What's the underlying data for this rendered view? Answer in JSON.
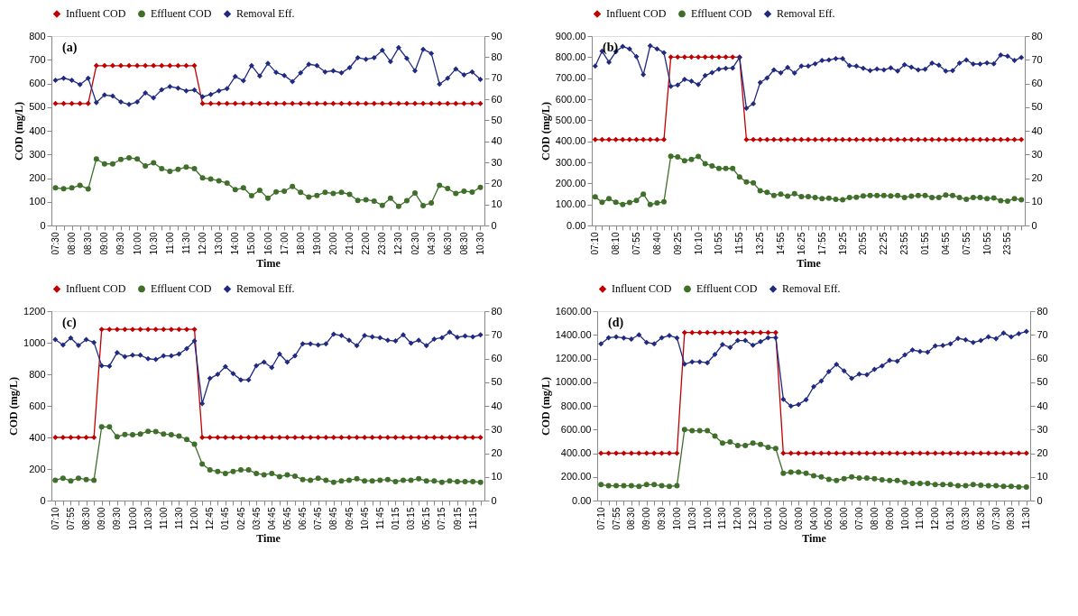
{
  "chart_data": [
    {
      "type": "line",
      "xlabel": "Time",
      "ylabel": "COD (mg/L)",
      "annotations": [
        "(a)"
      ],
      "legend": "top",
      "grid": false,
      "categories": [
        "07:30",
        null,
        "08:00",
        null,
        "08:30",
        null,
        "09:00",
        null,
        "09:30",
        null,
        "10:00",
        null,
        "10:30",
        null,
        "11:00",
        null,
        "11:30",
        null,
        "12:00",
        null,
        "13:00",
        null,
        "14:00",
        null,
        "15:00",
        null,
        "16:00",
        null,
        "17:00",
        null,
        "18:00",
        null,
        "19:00",
        null,
        "20:00",
        null,
        "21:00",
        null,
        "22:00",
        null,
        "23:00",
        null,
        "12:30",
        null,
        "02:30",
        null,
        "04:30",
        null,
        "06:30",
        null,
        "08:30",
        null,
        "10:30"
      ],
      "ylim": [
        0,
        800
      ],
      "yticks": [
        0,
        100,
        200,
        300,
        400,
        500,
        600,
        700,
        800
      ],
      "y2lim": [
        0,
        90
      ],
      "y2ticks": [
        0,
        10,
        20,
        30,
        40,
        50,
        60,
        70,
        80,
        90
      ],
      "series": [
        {
          "name": "Influent COD",
          "color": "#c00000",
          "marker": "diamond",
          "values": [
            515,
            515,
            515,
            515,
            515,
            675,
            675,
            675,
            675,
            675,
            675,
            675,
            675,
            675,
            675,
            675,
            675,
            675,
            515,
            515,
            515,
            515,
            515,
            515,
            515,
            515,
            515,
            515,
            515,
            515,
            515,
            515,
            515,
            515,
            515,
            515,
            515,
            515,
            515,
            515,
            515,
            515,
            515,
            515,
            515,
            515,
            515,
            515,
            515,
            515,
            515,
            515,
            515
          ]
        },
        {
          "name": "Effluent COD",
          "color": "#3f6f2a",
          "marker": "circle",
          "values": [
            159,
            155,
            159,
            170,
            154,
            281,
            260,
            260,
            279,
            286,
            281,
            251,
            265,
            240,
            229,
            237,
            247,
            240,
            201,
            196,
            189,
            179,
            151,
            159,
            126,
            149,
            115,
            142,
            145,
            165,
            140,
            120,
            127,
            140,
            135,
            140,
            131,
            106,
            109,
            103,
            85,
            115,
            81,
            105,
            137,
            84,
            95,
            170,
            156,
            135,
            145,
            141,
            161
          ]
        },
        {
          "name": "Removal Eff.",
          "color": "#1f2a80",
          "marker": "diamond",
          "axis": "y2",
          "values": [
            69,
            70,
            69,
            67,
            70,
            58.4,
            62,
            61.5,
            58.7,
            57.5,
            58.7,
            63,
            60.6,
            64.5,
            66,
            65.3,
            64,
            64.4,
            61.2,
            62.2,
            64,
            65,
            70.8,
            68.8,
            76,
            71,
            77,
            72.7,
            71.3,
            68.4,
            72.5,
            76.6,
            76,
            73,
            73.5,
            72.5,
            75,
            79.7,
            79,
            79.7,
            83.2,
            77.9,
            84.5,
            79.4,
            73.5,
            83.7,
            81.8,
            67.2,
            70,
            74.4,
            71.6,
            73,
            69.4
          ]
        }
      ]
    },
    {
      "type": "line",
      "xlabel": "Time",
      "ylabel": "COD (mg/L)",
      "annotations": [
        "(b)"
      ],
      "legend": "top",
      "grid": false,
      "categories": [
        "07:10",
        null,
        null,
        "08:10",
        null,
        null,
        "07:55",
        null,
        null,
        "08:40",
        null,
        null,
        "09:25",
        null,
        null,
        "10:10",
        null,
        null,
        "10:55",
        null,
        null,
        "11:55",
        null,
        null,
        "13:25",
        null,
        null,
        "14:55",
        null,
        null,
        "16:25",
        null,
        null,
        "17:55",
        null,
        null,
        "19:25",
        null,
        null,
        "20:55",
        null,
        null,
        "22:25",
        null,
        null,
        "23:55",
        null,
        null,
        "01:55",
        null,
        null,
        "04:55",
        null,
        null,
        "07:55",
        null,
        null,
        "10:55",
        null,
        null,
        "23:55",
        null,
        null
      ],
      "ylim": [
        0,
        900
      ],
      "yticks": [
        {
          "value": 0,
          "label": "0.00"
        },
        {
          "value": 100,
          "label": "100.00"
        },
        {
          "value": 200,
          "label": "200.00"
        },
        {
          "value": 300,
          "label": "300.00"
        },
        {
          "value": 400,
          "label": "400.00"
        },
        {
          "value": 500,
          "label": "500.00"
        },
        {
          "value": 600,
          "label": "600.00"
        },
        {
          "value": 700,
          "label": "700.00"
        },
        {
          "value": 800,
          "label": "800.00"
        },
        {
          "value": 900,
          "label": "900.00"
        }
      ],
      "y2lim": [
        0,
        80
      ],
      "y2ticks": [
        0,
        10,
        20,
        30,
        40,
        50,
        60,
        70,
        80
      ],
      "series": [
        {
          "name": "Influent COD",
          "color": "#c00000",
          "marker": "diamond",
          "values": [
            408,
            408,
            408,
            408,
            408,
            408,
            408,
            408,
            408,
            408,
            408,
            800,
            800,
            800,
            800,
            800,
            800,
            800,
            800,
            800,
            800,
            800,
            408,
            408,
            408,
            408,
            408,
            408,
            408,
            408,
            408,
            408,
            408,
            408,
            408,
            408,
            408,
            408,
            408,
            408,
            408,
            408,
            408,
            408,
            408,
            408,
            408,
            408,
            408,
            408,
            408,
            408,
            408,
            408,
            408,
            408,
            408,
            408,
            408,
            408,
            408,
            408,
            408
          ]
        },
        {
          "name": "Effluent COD",
          "color": "#3f6f2a",
          "marker": "circle",
          "values": [
            136,
            110,
            128,
            110,
            100,
            109,
            119,
            149,
            100,
            107,
            113,
            329,
            326,
            308,
            314,
            328,
            294,
            283,
            271,
            271,
            271,
            230,
            207,
            203,
            165,
            158,
            143,
            149,
            139,
            151,
            137,
            137,
            133,
            128,
            130,
            124,
            122,
            133,
            134,
            140,
            143,
            142,
            143,
            140,
            143,
            133,
            139,
            143,
            143,
            133,
            133,
            145,
            143,
            133,
            124,
            133,
            133,
            127,
            131,
            118,
            116,
            128,
            122
          ]
        },
        {
          "name": "Removal Eff.",
          "color": "#1f2a80",
          "marker": "diamond",
          "axis": "y2",
          "values": [
            67.3,
            73.6,
            69,
            73.4,
            75.6,
            74.6,
            71.3,
            63.7,
            75.9,
            74.6,
            73,
            58.8,
            59.3,
            61.7,
            61,
            59.5,
            63.3,
            64.6,
            66,
            66.4,
            66.5,
            71,
            49.5,
            51.4,
            60.4,
            62.3,
            65.7,
            64.5,
            66.8,
            64.4,
            67.3,
            67.3,
            68.3,
            69.7,
            69.9,
            70.5,
            70.5,
            67.5,
            67.3,
            66.4,
            65.4,
            66.1,
            65.7,
            66.6,
            65.2,
            67.9,
            66.9,
            65.7,
            66,
            68.6,
            67.7,
            65.2,
            65.4,
            68.6,
            69.9,
            68.2,
            68.2,
            68.7,
            68.3,
            72,
            71.5,
            69.7,
            71
          ]
        }
      ]
    },
    {
      "type": "line",
      "xlabel": "Time",
      "ylabel": "COD (mg/L)",
      "annotations": [
        "(c)"
      ],
      "legend": "top",
      "grid": false,
      "categories": [
        "07:10",
        null,
        "07:55",
        null,
        "08:30",
        null,
        "09:00",
        null,
        "09:30",
        null,
        "10:00",
        null,
        "10:30",
        null,
        "11:00",
        null,
        "11:30",
        null,
        "12:00",
        null,
        "12:45",
        null,
        "01:45",
        null,
        "02:45",
        null,
        "03:45",
        null,
        "04:45",
        null,
        "05:45",
        null,
        "06:45",
        null,
        "07:45",
        null,
        "08:45",
        null,
        "09:45",
        null,
        "10:45",
        null,
        "11:45",
        null,
        "01:15",
        null,
        "03:15",
        null,
        "05:15",
        null,
        "07:15",
        null,
        "09:15",
        null,
        "11:15",
        null
      ],
      "ylim": [
        0,
        1200
      ],
      "yticks": [
        0,
        200,
        400,
        600,
        800,
        1000,
        1200
      ],
      "y2lim": [
        0,
        80
      ],
      "y2ticks": [
        0,
        10,
        20,
        30,
        40,
        50,
        60,
        70,
        80
      ],
      "series": [
        {
          "name": "Influent COD",
          "color": "#c00000",
          "marker": "diamond",
          "values": [
            400,
            400,
            400,
            400,
            400,
            400,
            1085,
            1085,
            1085,
            1085,
            1085,
            1085,
            1085,
            1085,
            1085,
            1085,
            1085,
            1085,
            1085,
            400,
            400,
            400,
            400,
            400,
            400,
            400,
            400,
            400,
            400,
            400,
            400,
            400,
            400,
            400,
            400,
            400,
            400,
            400,
            400,
            400,
            400,
            400,
            400,
            400,
            400,
            400,
            400,
            400,
            400,
            400,
            400,
            400,
            400,
            400,
            400,
            400
          ]
        },
        {
          "name": "Effluent COD",
          "color": "#3f6f2a",
          "marker": "circle",
          "values": [
            129,
            142,
            125,
            142,
            133,
            129,
            467,
            467,
            404,
            419,
            417,
            422,
            439,
            437,
            422,
            417,
            409,
            387,
            357,
            232,
            194,
            185,
            172,
            185,
            194,
            194,
            172,
            163,
            172,
            151,
            163,
            155,
            133,
            129,
            142,
            129,
            116,
            125,
            129,
            138,
            125,
            125,
            129,
            133,
            120,
            129,
            129,
            138,
            125,
            125,
            116,
            125,
            120,
            120,
            120,
            116
          ]
        },
        {
          "name": "Removal Eff.",
          "color": "#1f2a80",
          "marker": "diamond",
          "axis": "y2",
          "values": [
            68,
            65.7,
            68.7,
            65.5,
            68,
            66.8,
            57,
            56.8,
            62.5,
            60.8,
            61.4,
            61.4,
            59.9,
            59.6,
            61.1,
            61.1,
            61.9,
            64.2,
            67.4,
            41,
            51.6,
            53.3,
            56.6,
            53.6,
            51,
            51,
            57,
            58.5,
            56.2,
            61.9,
            58.5,
            61.1,
            66.2,
            66.2,
            65.7,
            66.2,
            70.3,
            69.7,
            67.7,
            65.4,
            69.7,
            69.1,
            68.8,
            67.7,
            67.4,
            70,
            66.5,
            67.7,
            65.4,
            68.2,
            68.8,
            71.1,
            69,
            69.5,
            69.1,
            70
          ]
        }
      ]
    },
    {
      "type": "line",
      "xlabel": "Time",
      "ylabel": "COD (mg/L)",
      "annotations": [
        "(d)"
      ],
      "legend": "top",
      "grid": false,
      "categories": [
        "07:10",
        null,
        "07:55",
        null,
        "08:30",
        null,
        "09:00",
        null,
        "09:30",
        null,
        "10:00",
        null,
        "10:30",
        null,
        "11:00",
        null,
        "11:30",
        null,
        "12:00",
        null,
        "12:30",
        null,
        "01:00",
        null,
        "02:00",
        null,
        "03:00",
        null,
        "04:00",
        null,
        "05:00",
        null,
        "06:00",
        null,
        "07:00",
        null,
        "08:00",
        null,
        "09:00",
        null,
        "10:00",
        null,
        "11:00",
        null,
        "12:00",
        null,
        "01:30",
        null,
        "03:30",
        null,
        "05:30",
        null,
        "07:30",
        null,
        "09:30",
        null,
        "11:30"
      ],
      "ylim": [
        0,
        1600
      ],
      "yticks": [
        {
          "value": 0,
          "label": "0.00"
        },
        {
          "value": 200,
          "label": "200.00"
        },
        {
          "value": 400,
          "label": "400.00"
        },
        {
          "value": 600,
          "label": "600.00"
        },
        {
          "value": 800,
          "label": "800.00"
        },
        {
          "value": 1000,
          "label": "1000.00"
        },
        {
          "value": 1200,
          "label": "1200.00"
        },
        {
          "value": 1400,
          "label": "1400.00"
        },
        {
          "value": 1600,
          "label": "1600.00"
        }
      ],
      "y2lim": [
        0,
        80
      ],
      "y2ticks": [
        0,
        10,
        20,
        30,
        40,
        50,
        60,
        70,
        80
      ],
      "series": [
        {
          "name": "Influent COD",
          "color": "#c00000",
          "marker": "diamond",
          "values": [
            400,
            400,
            400,
            400,
            400,
            400,
            400,
            400,
            400,
            400,
            400,
            1420,
            1420,
            1420,
            1420,
            1420,
            1420,
            1420,
            1420,
            1420,
            1420,
            1420,
            1420,
            1420,
            400,
            400,
            400,
            400,
            400,
            400,
            400,
            400,
            400,
            400,
            400,
            400,
            400,
            400,
            400,
            400,
            400,
            400,
            400,
            400,
            400,
            400,
            400,
            400,
            400,
            400,
            400,
            400,
            400,
            400,
            400,
            400,
            400
          ]
        },
        {
          "name": "Effluent COD",
          "color": "#3f6f2a",
          "marker": "circle",
          "values": [
            135,
            125,
            125,
            125,
            125,
            120,
            135,
            135,
            125,
            120,
            125,
            600,
            590,
            590,
            590,
            545,
            485,
            495,
            465,
            465,
            485,
            475,
            450,
            440,
            230,
            240,
            240,
            230,
            210,
            200,
            180,
            170,
            185,
            200,
            190,
            190,
            185,
            175,
            170,
            170,
            155,
            145,
            145,
            145,
            135,
            135,
            135,
            125,
            125,
            135,
            130,
            125,
            125,
            120,
            120,
            115,
            115
          ]
        },
        {
          "name": "Removal Eff.",
          "color": "#1f2a80",
          "marker": "diamond",
          "axis": "y2",
          "values": [
            66.2,
            68.8,
            69.1,
            68.7,
            68.2,
            70,
            66.8,
            66.2,
            68.8,
            69.7,
            68.7,
            57.6,
            58.6,
            58.6,
            58.2,
            61.7,
            65.9,
            64.7,
            67.6,
            67.6,
            65.6,
            67.1,
            68.8,
            68.8,
            42.8,
            39.9,
            40.6,
            42.6,
            48.1,
            50.5,
            54.5,
            57.5,
            54.8,
            51.6,
            53.4,
            53.1,
            55.4,
            56.9,
            59.2,
            58.9,
            61.5,
            63.6,
            63,
            62.7,
            65.3,
            65.5,
            66.2,
            68.5,
            67.9,
            66.8,
            67.6,
            69.1,
            68.4,
            70.8,
            69.1,
            70.5,
            71.4
          ]
        }
      ]
    }
  ]
}
